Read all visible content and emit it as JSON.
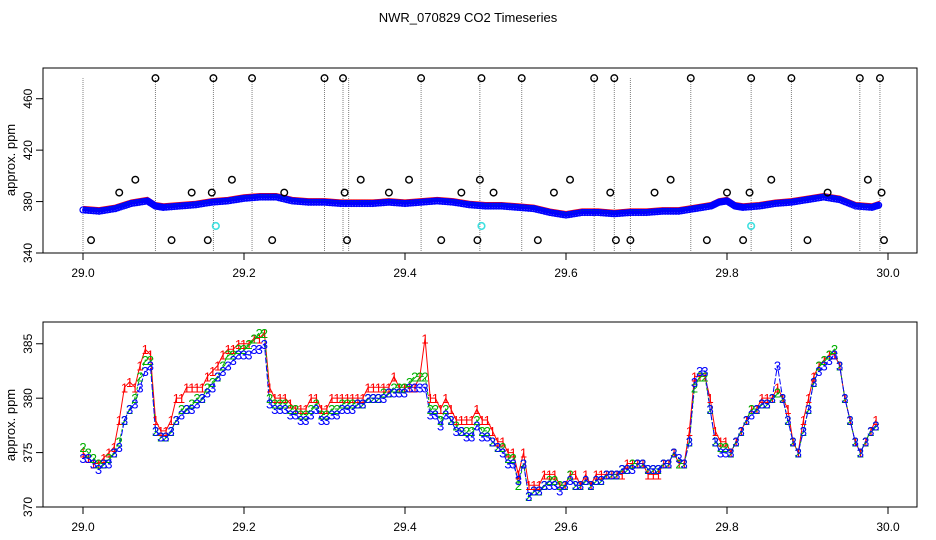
{
  "title": "NWR_070829  CO2 Timeseries",
  "colors": {
    "series1": "#ff0000",
    "series2": "#00b000",
    "series3": "#0000ff",
    "outlier": "#000000",
    "flag": "#40e0e0",
    "spike": "#808080"
  },
  "chart_data": [
    {
      "type": "scatter",
      "title": "",
      "xlabel": "",
      "ylabel": "approx. ppm",
      "xlim": [
        29.0,
        30.0
      ],
      "ylim": [
        340,
        480
      ],
      "xticks": [
        "29.0",
        "29.2",
        "29.4",
        "29.6",
        "29.8",
        "30.0"
      ],
      "yticks": [
        "340",
        "380",
        "420",
        "460"
      ],
      "baseline": {
        "x": [
          29.0,
          29.02,
          29.04,
          29.06,
          29.08,
          29.09,
          29.1,
          29.12,
          29.14,
          29.16,
          29.18,
          29.2,
          29.22,
          29.24,
          29.26,
          29.28,
          29.3,
          29.32,
          29.34,
          29.36,
          29.38,
          29.4,
          29.42,
          29.44,
          29.46,
          29.48,
          29.5,
          29.52,
          29.54,
          29.56,
          29.58,
          29.6,
          29.62,
          29.64,
          29.66,
          29.68,
          29.7,
          29.72,
          29.74,
          29.76,
          29.78,
          29.79,
          29.8,
          29.81,
          29.82,
          29.84,
          29.86,
          29.88,
          29.9,
          29.92,
          29.94,
          29.96,
          29.98,
          29.99
        ],
        "y": [
          374,
          373,
          375,
          379,
          381,
          377,
          376,
          377,
          378,
          380,
          381,
          383,
          384,
          384,
          381,
          380,
          380,
          379,
          379,
          379,
          380,
          379,
          380,
          381,
          380,
          378,
          377,
          377,
          376,
          375,
          372,
          370,
          372,
          372,
          371,
          372,
          372,
          373,
          373,
          375,
          377,
          380,
          381,
          377,
          376,
          377,
          379,
          380,
          382,
          384,
          382,
          377,
          376,
          378
        ]
      },
      "outliers": {
        "x": [
          29.01,
          29.045,
          29.065,
          29.09,
          29.11,
          29.135,
          29.155,
          29.16,
          29.162,
          29.185,
          29.21,
          29.235,
          29.25,
          29.3,
          29.323,
          29.325,
          29.328,
          29.345,
          29.38,
          29.405,
          29.42,
          29.445,
          29.47,
          29.49,
          29.493,
          29.495,
          29.51,
          29.545,
          29.565,
          29.585,
          29.605,
          29.635,
          29.655,
          29.66,
          29.662,
          29.68,
          29.71,
          29.73,
          29.755,
          29.775,
          29.8,
          29.82,
          29.828,
          29.83,
          29.855,
          29.88,
          29.9,
          29.925,
          29.965,
          29.975,
          29.99,
          29.992,
          29.995
        ],
        "y": [
          350,
          387,
          397,
          476,
          350,
          387,
          350,
          387,
          476,
          397,
          476,
          350,
          387,
          476,
          476,
          387,
          350,
          397,
          387,
          397,
          476,
          350,
          387,
          350,
          397,
          476,
          387,
          476,
          350,
          387,
          397,
          476,
          387,
          476,
          350,
          350,
          387,
          397,
          476,
          350,
          387,
          350,
          387,
          476,
          397,
          476,
          350,
          387,
          476,
          397,
          476,
          387,
          350
        ]
      },
      "flagged": {
        "x": [
          29.165,
          29.495,
          29.83
        ],
        "y": [
          361,
          361,
          361
        ]
      },
      "spikes": [
        29.0,
        29.09,
        29.162,
        29.21,
        29.3,
        29.323,
        29.33,
        29.42,
        29.493,
        29.545,
        29.635,
        29.66,
        29.68,
        29.755,
        29.83,
        29.88,
        29.965,
        29.99
      ]
    },
    {
      "type": "line",
      "title": "",
      "xlabel": "",
      "ylabel": "approx. ppm",
      "xlim": [
        29.0,
        30.0
      ],
      "ylim": [
        370,
        387
      ],
      "xticks": [
        "29.0",
        "29.2",
        "29.4",
        "29.6",
        "29.8",
        "30.0"
      ],
      "yticks": [
        "370",
        "375",
        "380",
        "385"
      ],
      "series": [
        {
          "name": "1",
          "values": [
            375,
            374.5,
            374,
            374,
            374.5,
            375,
            375.5,
            378,
            381,
            381.5,
            381,
            383,
            384.5,
            384,
            378,
            377,
            377,
            378,
            380,
            380,
            381,
            381,
            381,
            381,
            382,
            382.5,
            383,
            384,
            384.5,
            384.5,
            385,
            385,
            385,
            385.5,
            385.5,
            386,
            381,
            380,
            380,
            380,
            379.5,
            379,
            379,
            379,
            380,
            380,
            379,
            379,
            380,
            380,
            380,
            380,
            380,
            380,
            380,
            381,
            381,
            381,
            381,
            381,
            382,
            381,
            381,
            381,
            381,
            382,
            385.5,
            380,
            380,
            379,
            380,
            379,
            378,
            378,
            378,
            378,
            379,
            378,
            378,
            377,
            376,
            376,
            375,
            375,
            373,
            375,
            372,
            372,
            372,
            373,
            373,
            373,
            372,
            372,
            373,
            373,
            372,
            373,
            372,
            373,
            373,
            373,
            373,
            373,
            373,
            374,
            374,
            374,
            374,
            373,
            373,
            373,
            374,
            374,
            375,
            374,
            374,
            377,
            382,
            382,
            382,
            380,
            377,
            376,
            376,
            375,
            376,
            377,
            378,
            379,
            379,
            380,
            380,
            380,
            381,
            380,
            379,
            376,
            375,
            378,
            380,
            382,
            383,
            383.5,
            384,
            384,
            383,
            380,
            378,
            376,
            375,
            376,
            377,
            378
          ]
        },
        {
          "name": "2",
          "values": [
            375.5,
            375,
            374.5,
            374,
            374,
            374.5,
            375,
            376,
            378,
            379,
            380,
            382,
            383.5,
            383.5,
            377,
            376.5,
            376.5,
            377,
            378,
            379,
            379,
            379.5,
            380,
            380,
            381,
            381.5,
            382,
            383,
            384,
            384,
            384.5,
            384.5,
            385,
            385.5,
            386,
            386,
            380,
            379.5,
            379.5,
            379.5,
            379,
            379,
            378.5,
            378.5,
            379,
            379.5,
            378.5,
            378.5,
            379,
            379,
            379.5,
            379.5,
            379.5,
            379.5,
            379.5,
            380,
            380,
            380,
            380.5,
            380.5,
            381,
            381,
            381,
            381.5,
            382,
            382,
            382,
            379,
            379,
            378,
            379,
            378,
            377.5,
            377,
            377,
            377,
            378,
            377,
            377,
            376,
            375.5,
            375.5,
            374.5,
            374.5,
            372,
            374,
            371,
            371.5,
            371.5,
            372,
            372.5,
            372.5,
            372,
            372,
            373,
            372,
            372,
            372.5,
            372,
            372.5,
            372.5,
            373,
            373,
            373,
            373.5,
            373.5,
            374,
            374,
            374,
            373.5,
            373.5,
            373.5,
            374,
            374,
            375,
            374,
            374,
            376,
            381,
            382,
            382,
            379,
            376,
            375.5,
            375.5,
            375,
            376,
            377,
            378,
            379,
            379,
            379.5,
            379.5,
            380,
            380.5,
            380,
            378,
            376,
            375,
            377,
            379,
            381.5,
            383,
            383.5,
            384,
            384.5,
            383,
            380,
            378,
            376,
            375,
            376,
            377,
            377.5
          ]
        },
        {
          "name": "3",
          "values": [
            374.5,
            374.5,
            374,
            373.5,
            374,
            374,
            375,
            375.5,
            378,
            379,
            379.5,
            381,
            382.5,
            383,
            377,
            376.5,
            376.5,
            377,
            378,
            378.5,
            379,
            379,
            379.5,
            380,
            380.5,
            381,
            382,
            382.5,
            383,
            383.5,
            384,
            384,
            384,
            384.5,
            384.5,
            385,
            379.5,
            379,
            379,
            379,
            378.5,
            378.5,
            378,
            378,
            378.5,
            379,
            378,
            378,
            378.5,
            378.5,
            379,
            379,
            379,
            379.5,
            379.5,
            380,
            380,
            380,
            380,
            380.5,
            380.5,
            380.5,
            380.5,
            381,
            381,
            381,
            381,
            378.5,
            378.5,
            377.5,
            378.5,
            378,
            377,
            377,
            376.5,
            376.5,
            377.5,
            376.5,
            376.5,
            376,
            375.5,
            375,
            374,
            374,
            372.5,
            374,
            371,
            371.5,
            371.5,
            372,
            372,
            372,
            371.5,
            372,
            372.5,
            372,
            372,
            372.5,
            372,
            372.5,
            372.5,
            373,
            373,
            373,
            373.5,
            373.5,
            373.5,
            374,
            374,
            373.5,
            373.5,
            373.5,
            374,
            374,
            375,
            374.5,
            374,
            376,
            381.5,
            382.5,
            382.5,
            379,
            376,
            375,
            375,
            375,
            376,
            377,
            378,
            378.5,
            379,
            379.5,
            379.5,
            380,
            383,
            380,
            378,
            376,
            375,
            377,
            379,
            381.5,
            382.5,
            383,
            383.5,
            384,
            383,
            380,
            378,
            376,
            375,
            376,
            377,
            377.5
          ]
        }
      ]
    }
  ]
}
